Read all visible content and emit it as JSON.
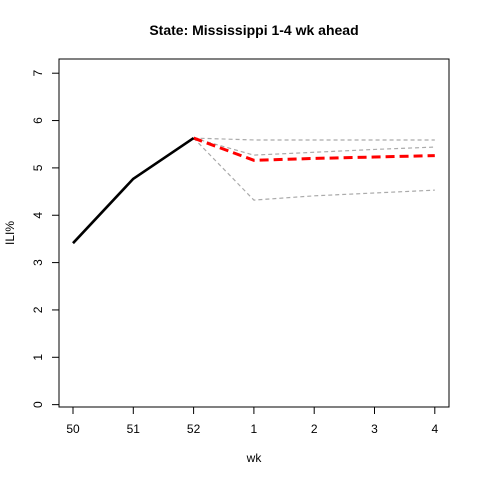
{
  "chart_data": {
    "type": "line",
    "title": "State: Mississippi 1-4 wk ahead",
    "xlabel": "wk",
    "ylabel": "ILI%",
    "x_tick_labels": [
      "50",
      "51",
      "52",
      "1",
      "2",
      "3",
      "4"
    ],
    "y_ticks": [
      0,
      1,
      2,
      3,
      4,
      5,
      6,
      7
    ],
    "ylim": [
      -0.05,
      7.3
    ],
    "grid": false,
    "series": [
      {
        "role": "observed",
        "color": "#000000",
        "style": "solid",
        "x_index": [
          0,
          1,
          2
        ],
        "values": [
          3.41,
          4.77,
          5.63
        ]
      },
      {
        "role": "forecast-upper",
        "color": "#aaaaaa",
        "style": "dashed",
        "x_index": [
          2,
          3,
          4,
          5,
          6
        ],
        "values": [
          5.63,
          5.59,
          5.59,
          5.59,
          5.59
        ]
      },
      {
        "role": "forecast-mid",
        "color": "#aaaaaa",
        "style": "dashed",
        "x_index": [
          2,
          3,
          4,
          5,
          6
        ],
        "values": [
          5.63,
          5.27,
          5.33,
          5.39,
          5.44
        ]
      },
      {
        "role": "forecast-lower",
        "color": "#aaaaaa",
        "style": "dashed",
        "x_index": [
          2,
          3,
          4,
          5,
          6
        ],
        "values": [
          5.63,
          4.32,
          4.41,
          4.47,
          4.53
        ]
      },
      {
        "role": "forecast-point",
        "color": "#ff0000",
        "style": "dashed",
        "x_index": [
          2,
          3,
          4,
          5,
          6
        ],
        "values": [
          5.63,
          5.16,
          5.2,
          5.23,
          5.26
        ]
      }
    ]
  }
}
